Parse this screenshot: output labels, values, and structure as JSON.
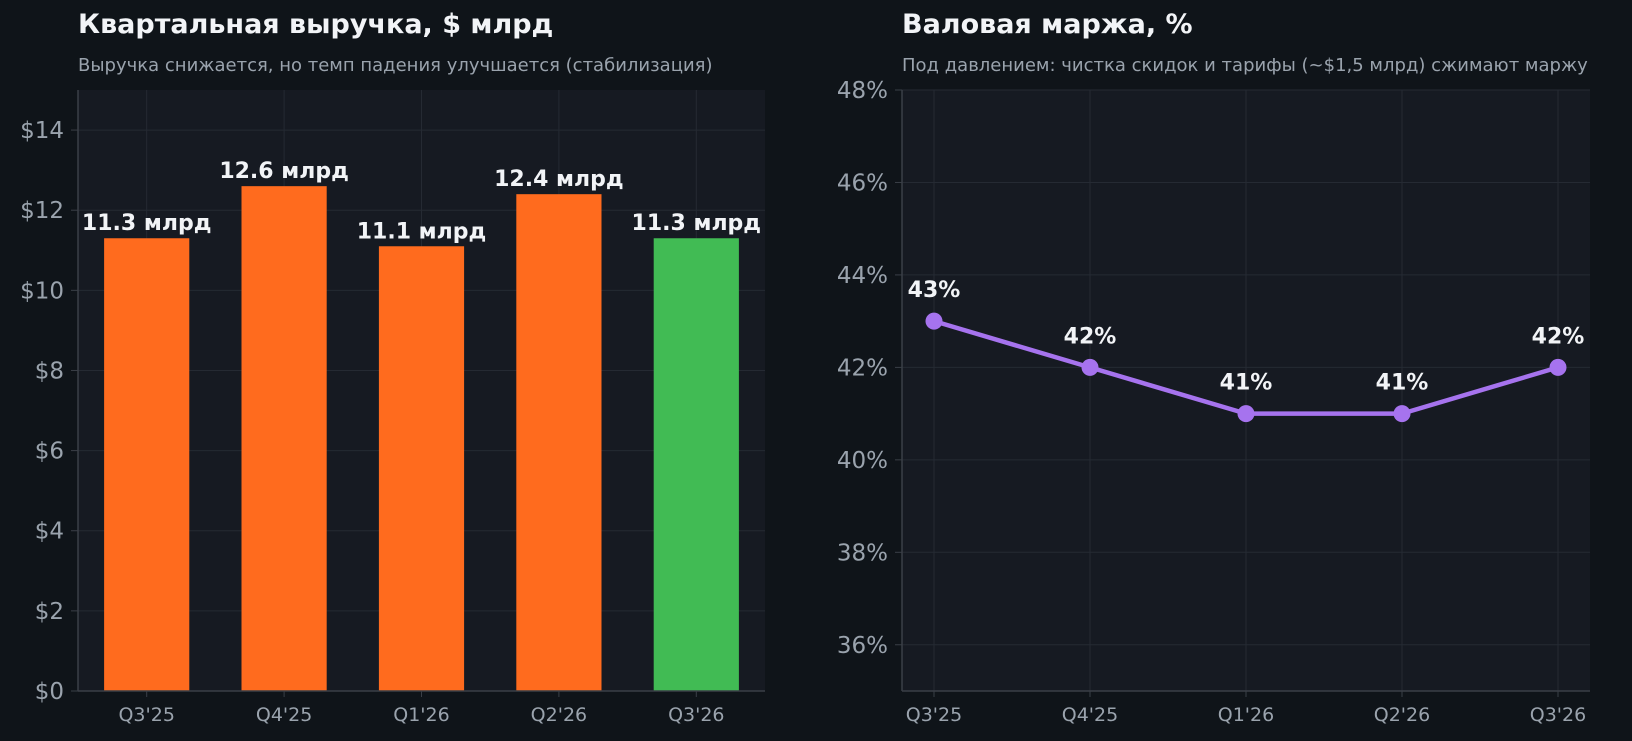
{
  "chart_data": [
    {
      "type": "bar",
      "title": "Квартальная выручка, $ млрд",
      "subtitle": "Выручка снижается, но темп падения улучшается (стабилизация)",
      "categories": [
        "Q3'25",
        "Q4'25",
        "Q1'26",
        "Q2'26",
        "Q3'26"
      ],
      "values": [
        11.3,
        12.6,
        11.1,
        12.4,
        11.3
      ],
      "data_labels": [
        "11.3 млрд",
        "12.6 млрд",
        "11.1 млрд",
        "12.4 млрд",
        "11.3 млрд"
      ],
      "bar_colors": [
        "#ff6b1e",
        "#ff6b1e",
        "#ff6b1e",
        "#ff6b1e",
        "#41bb54"
      ],
      "ylim": [
        0,
        15
      ],
      "yticks": [
        0,
        2,
        4,
        6,
        8,
        10,
        12,
        14
      ],
      "ytick_labels": [
        "$0",
        "$2",
        "$4",
        "$6",
        "$8",
        "$10",
        "$12",
        "$14"
      ],
      "xlabel": "",
      "ylabel": "",
      "grid": true
    },
    {
      "type": "line",
      "title": "Валовая маржа, %",
      "subtitle": "Под давлением: чистка скидок и тарифы (~$1,5 млрд) сжимают маржу",
      "categories": [
        "Q3'25",
        "Q4'25",
        "Q1'26",
        "Q2'26",
        "Q3'26"
      ],
      "values": [
        43,
        42,
        41,
        41,
        42
      ],
      "data_labels": [
        "43%",
        "42%",
        "41%",
        "41%",
        "42%"
      ],
      "line_color": "#a673ee",
      "ylim": [
        35,
        48
      ],
      "yticks": [
        36,
        38,
        40,
        42,
        44,
        46,
        48
      ],
      "ytick_labels": [
        "36%",
        "38%",
        "40%",
        "42%",
        "44%",
        "46%",
        "48%"
      ],
      "xlabel": "",
      "ylabel": "",
      "grid": true
    }
  ],
  "colors": {
    "page_background": "#0f1419",
    "plot_background": "#161a22",
    "grid": "#252a33",
    "axis": "#3a3f47",
    "text": "#f2f4f7",
    "muted_text": "#9aa3ad"
  }
}
